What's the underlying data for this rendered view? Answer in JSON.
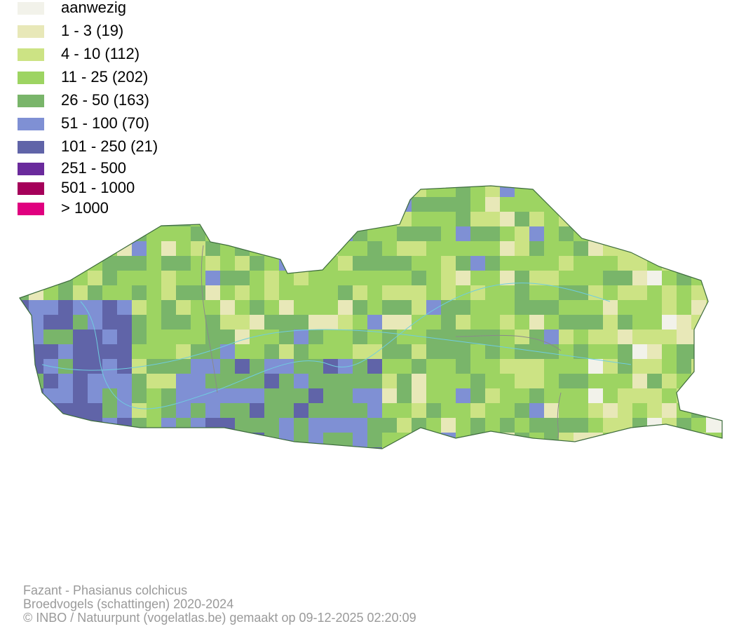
{
  "legend": {
    "items": [
      {
        "label": "aanwezig",
        "color": "#f2f2ea"
      },
      {
        "label": "1 - 3 (19)",
        "color": "#e8e8b8"
      },
      {
        "label": "4 - 10 (112)",
        "color": "#cce384"
      },
      {
        "label": "11 - 25 (202)",
        "color": "#9dd462"
      },
      {
        "label": "26 - 50 (163)",
        "color": "#79b56a"
      },
      {
        "label": "51 - 100 (70)",
        "color": "#7f90d4"
      },
      {
        "label": "101 - 250 (21)",
        "color": "#6064a8"
      },
      {
        "label": "251 - 500",
        "color": "#6a2a9c"
      },
      {
        "label": "501 - 1000",
        "color": "#a5005a"
      },
      {
        "label": "> 1000",
        "color": "#e0007f"
      }
    ]
  },
  "footer": {
    "lines": [
      "Fazant - Phasianus colchicus",
      "Broedvogels (schattingen) 2020-2024",
      "© INBO / Natuurpunt (vogelatlas.be) gemaakt op 09-12-2025 02:20:09"
    ]
  }
}
